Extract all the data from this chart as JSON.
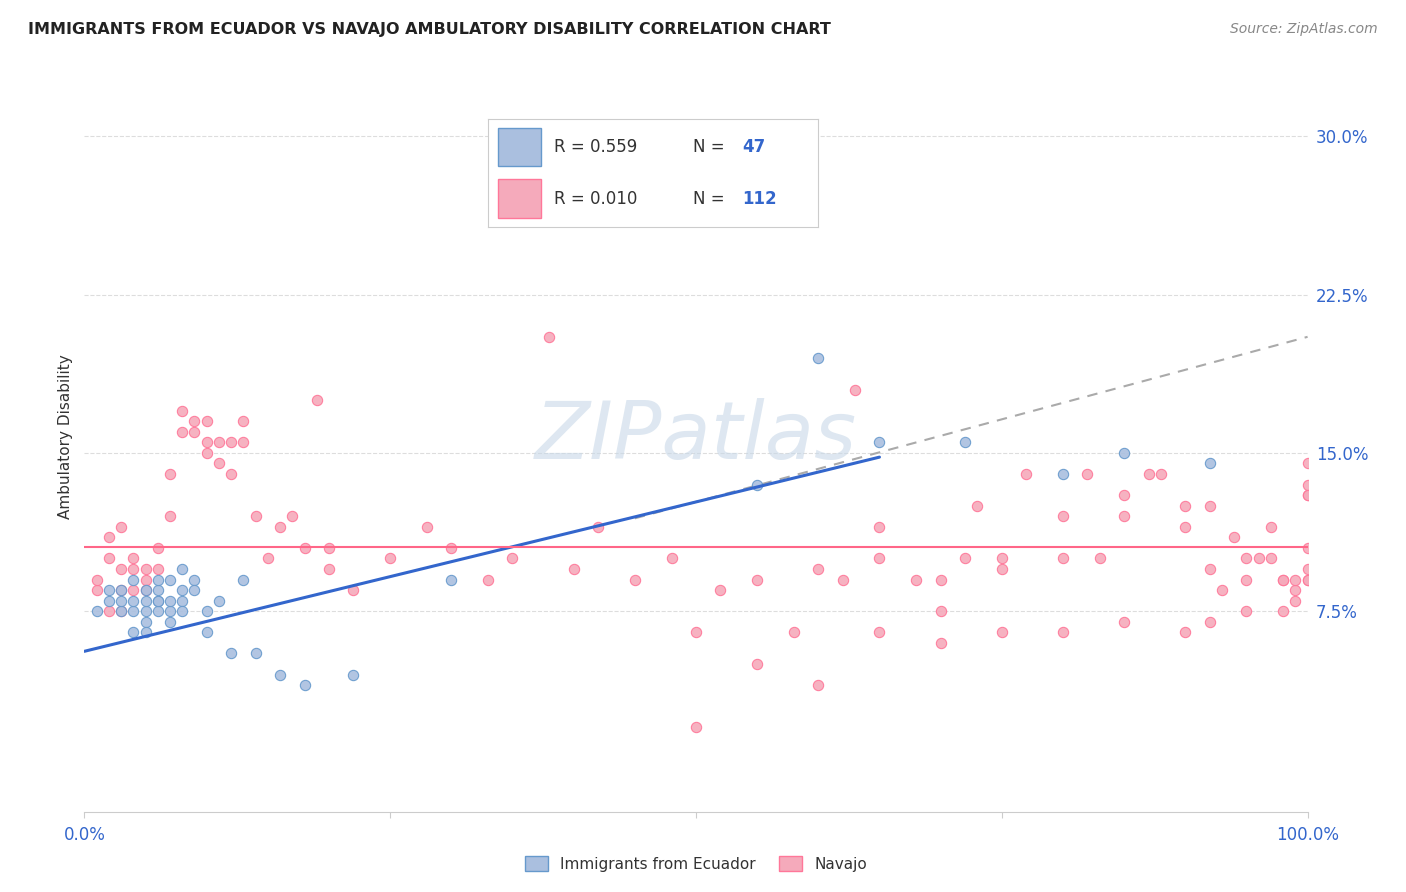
{
  "title": "IMMIGRANTS FROM ECUADOR VS NAVAJO AMBULATORY DISABILITY CORRELATION CHART",
  "source": "Source: ZipAtlas.com",
  "ylabel": "Ambulatory Disability",
  "yticks": [
    "7.5%",
    "15.0%",
    "22.5%",
    "30.0%"
  ],
  "ytick_vals": [
    0.075,
    0.15,
    0.225,
    0.3
  ],
  "xlim": [
    0.0,
    1.0
  ],
  "ylim": [
    -0.02,
    0.335
  ],
  "legend1_R": "R = 0.559",
  "legend1_N": "N = 47",
  "legend2_R": "R = 0.010",
  "legend2_N": "N = 112",
  "blue_scatter_color": "#AABFDF",
  "pink_scatter_color": "#F5AABB",
  "blue_edge_color": "#6699CC",
  "pink_edge_color": "#FF7799",
  "trendline_blue_color": "#3366CC",
  "trendline_pink_color": "#FF6688",
  "trendline_gray_color": "#AAAAAA",
  "axis_color": "#3366CC",
  "text_dark": "#333333",
  "watermark_color": "#C8D8E8",
  "background_color": "#FFFFFF",
  "grid_color": "#DDDDDD",
  "blue_points_x": [
    0.01,
    0.02,
    0.02,
    0.03,
    0.03,
    0.03,
    0.04,
    0.04,
    0.04,
    0.04,
    0.05,
    0.05,
    0.05,
    0.05,
    0.05,
    0.06,
    0.06,
    0.06,
    0.06,
    0.06,
    0.07,
    0.07,
    0.07,
    0.07,
    0.08,
    0.08,
    0.08,
    0.08,
    0.09,
    0.09,
    0.1,
    0.1,
    0.11,
    0.12,
    0.13,
    0.14,
    0.16,
    0.18,
    0.22,
    0.3,
    0.55,
    0.6,
    0.65,
    0.72,
    0.8,
    0.85,
    0.92
  ],
  "blue_points_y": [
    0.075,
    0.08,
    0.085,
    0.075,
    0.08,
    0.085,
    0.075,
    0.08,
    0.09,
    0.065,
    0.075,
    0.08,
    0.085,
    0.07,
    0.065,
    0.08,
    0.085,
    0.09,
    0.075,
    0.08,
    0.075,
    0.07,
    0.09,
    0.08,
    0.08,
    0.095,
    0.085,
    0.075,
    0.09,
    0.085,
    0.075,
    0.065,
    0.08,
    0.055,
    0.09,
    0.055,
    0.045,
    0.04,
    0.045,
    0.09,
    0.135,
    0.195,
    0.155,
    0.155,
    0.14,
    0.15,
    0.145
  ],
  "pink_points_x": [
    0.01,
    0.01,
    0.02,
    0.02,
    0.02,
    0.03,
    0.03,
    0.03,
    0.03,
    0.04,
    0.04,
    0.04,
    0.05,
    0.05,
    0.05,
    0.06,
    0.06,
    0.07,
    0.07,
    0.08,
    0.08,
    0.09,
    0.09,
    0.1,
    0.1,
    0.1,
    0.11,
    0.11,
    0.12,
    0.12,
    0.13,
    0.13,
    0.14,
    0.15,
    0.16,
    0.17,
    0.18,
    0.19,
    0.2,
    0.2,
    0.22,
    0.25,
    0.28,
    0.3,
    0.33,
    0.35,
    0.38,
    0.4,
    0.42,
    0.45,
    0.48,
    0.5,
    0.52,
    0.55,
    0.58,
    0.6,
    0.62,
    0.63,
    0.65,
    0.65,
    0.68,
    0.7,
    0.7,
    0.72,
    0.73,
    0.75,
    0.75,
    0.77,
    0.8,
    0.8,
    0.82,
    0.83,
    0.85,
    0.85,
    0.87,
    0.88,
    0.9,
    0.9,
    0.92,
    0.92,
    0.93,
    0.94,
    0.95,
    0.95,
    0.96,
    0.97,
    0.97,
    0.98,
    0.98,
    0.99,
    0.99,
    0.99,
    1.0,
    1.0,
    1.0,
    1.0,
    1.0,
    1.0,
    1.0,
    1.0,
    0.5,
    0.55,
    0.6,
    0.65,
    0.7,
    0.75,
    0.8,
    0.85,
    0.9,
    0.92,
    0.95,
    0.98
  ],
  "pink_points_y": [
    0.085,
    0.09,
    0.075,
    0.1,
    0.11,
    0.095,
    0.085,
    0.075,
    0.115,
    0.095,
    0.1,
    0.085,
    0.09,
    0.095,
    0.085,
    0.095,
    0.105,
    0.12,
    0.14,
    0.16,
    0.17,
    0.16,
    0.165,
    0.15,
    0.155,
    0.165,
    0.145,
    0.155,
    0.14,
    0.155,
    0.155,
    0.165,
    0.12,
    0.1,
    0.115,
    0.12,
    0.105,
    0.175,
    0.095,
    0.105,
    0.085,
    0.1,
    0.115,
    0.105,
    0.09,
    0.1,
    0.205,
    0.095,
    0.115,
    0.09,
    0.1,
    0.065,
    0.085,
    0.09,
    0.065,
    0.095,
    0.09,
    0.18,
    0.1,
    0.115,
    0.09,
    0.09,
    0.075,
    0.1,
    0.125,
    0.1,
    0.095,
    0.14,
    0.1,
    0.12,
    0.14,
    0.1,
    0.12,
    0.13,
    0.14,
    0.14,
    0.115,
    0.125,
    0.095,
    0.125,
    0.085,
    0.11,
    0.09,
    0.1,
    0.1,
    0.115,
    0.1,
    0.09,
    0.09,
    0.085,
    0.08,
    0.09,
    0.09,
    0.105,
    0.09,
    0.13,
    0.135,
    0.145,
    0.095,
    0.13,
    0.02,
    0.05,
    0.04,
    0.065,
    0.06,
    0.065,
    0.065,
    0.07,
    0.065,
    0.07,
    0.075,
    0.075
  ],
  "blue_trend_x0": 0.0,
  "blue_trend_x1": 0.65,
  "blue_trend_y0": 0.056,
  "blue_trend_y1": 0.148,
  "gray_trend_x0": 0.45,
  "gray_trend_x1": 1.0,
  "gray_trend_y0": 0.119,
  "gray_trend_y1": 0.205,
  "pink_trend_y": 0.1055
}
